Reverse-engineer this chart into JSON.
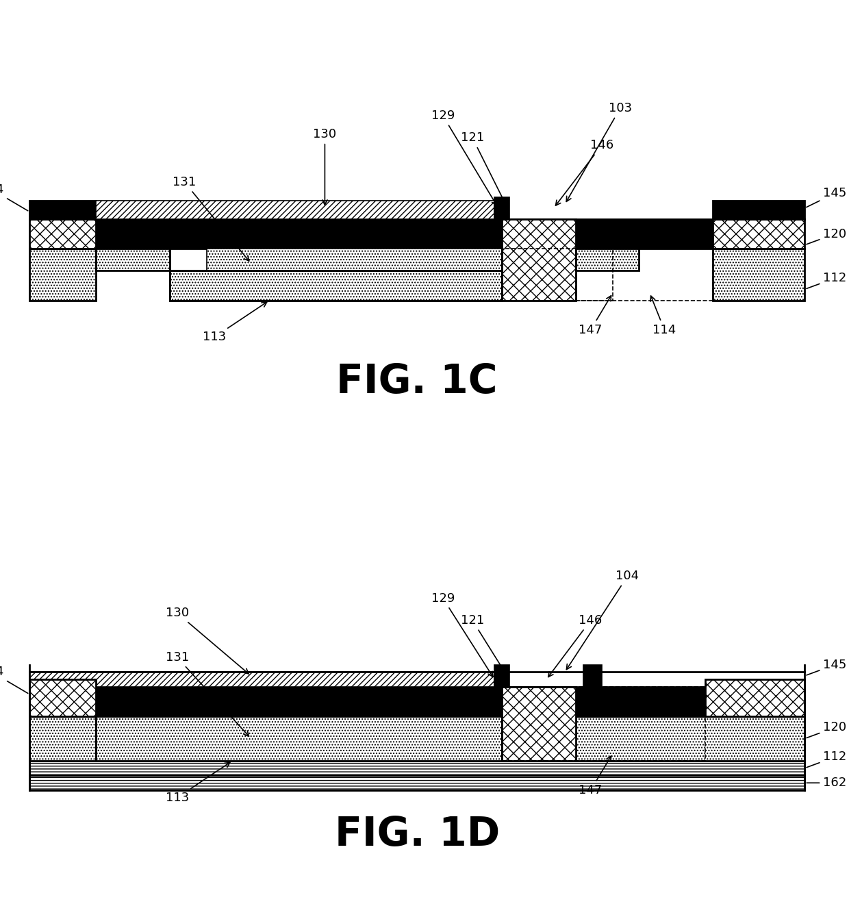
{
  "fig_title_1": "FIG. 1C",
  "fig_title_2": "FIG. 1D",
  "title_fontsize": 42,
  "label_fontsize": 13,
  "bg_color": "#ffffff",
  "line_color": "#000000",
  "black_fill": "#000000",
  "hatch_cross": "xx",
  "hatch_diag": "////",
  "hatch_dot": "....",
  "hatch_horiz": "----",
  "white_fill": "#ffffff"
}
